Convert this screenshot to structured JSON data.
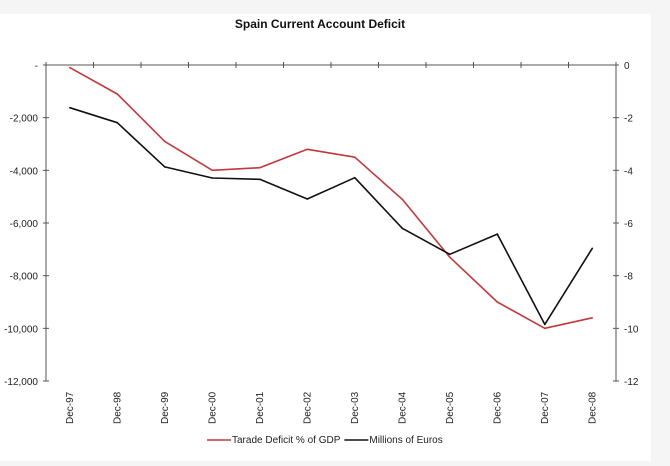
{
  "chart_data": {
    "type": "line",
    "title": "Spain Current Account Deficit",
    "xlabel": "",
    "ylabel": "",
    "categories": [
      "Dec-97",
      "Dec-98",
      "Dec-99",
      "Dec-00",
      "Dec-01",
      "Dec-02",
      "Dec-03",
      "Dec-04",
      "Dec-05",
      "Dec-06",
      "Dec-07",
      "Dec-08"
    ],
    "y_left": {
      "range": [
        -12000,
        0
      ],
      "ticks": [
        0,
        -2000,
        -4000,
        -6000,
        -8000,
        -10000,
        -12000
      ],
      "tick_labels": [
        "-",
        "-2,000",
        "-4,000",
        "-6,000",
        "-8,000",
        "-10,000",
        "-12,000"
      ]
    },
    "y_right": {
      "range": [
        -12,
        0
      ],
      "ticks": [
        0,
        -2,
        -4,
        -6,
        -8,
        -10,
        -12
      ],
      "tick_labels": [
        "0",
        "-2",
        "-4",
        "-6",
        "-8",
        "-10",
        "-12"
      ]
    },
    "series": [
      {
        "name": "Tarade Deficit % of GDP",
        "axis": "right",
        "color": "#c0393b",
        "values": [
          -0.1,
          -1.1,
          -2.9,
          -4.0,
          -3.9,
          -3.2,
          -3.5,
          -5.1,
          -7.3,
          -9.0,
          -10.0,
          -9.6
        ]
      },
      {
        "name": "Millions of Euros",
        "axis": "left",
        "color": "#111111",
        "values": [
          -1620,
          -2190,
          -3870,
          -4290,
          -4340,
          -5090,
          -4280,
          -6200,
          -7190,
          -6420,
          -9850,
          -6960
        ]
      }
    ],
    "grid": false,
    "legend": "bottom-center"
  }
}
